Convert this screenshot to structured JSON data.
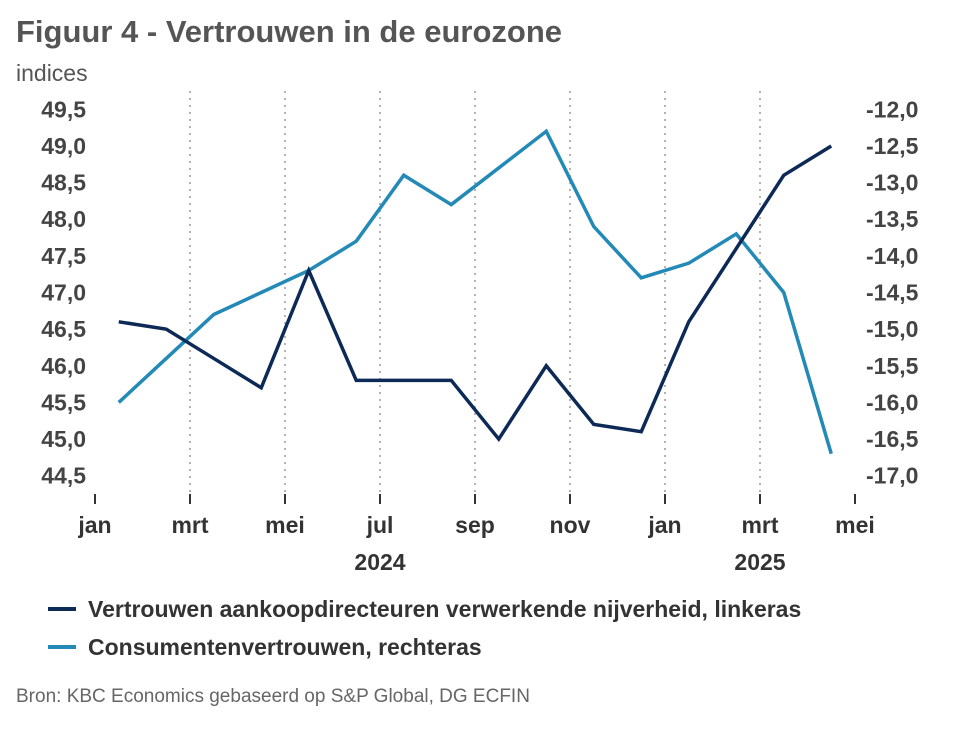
{
  "title": "Figuur 4 - Vertrouwen in de eurozone",
  "subtitle": "indices",
  "source": "Bron: KBC Economics gebaseerd op S&P Global, DG ECFIN",
  "colors": {
    "pmi": "#0d2a57",
    "consumer": "#2389b6",
    "grid": "#9a9a9a",
    "axis_text": "#444444"
  },
  "chart_data": {
    "type": "line",
    "left_axis": {
      "range": [
        44.25,
        49.75
      ],
      "ticks": [
        44.5,
        45.0,
        45.5,
        46.0,
        46.5,
        47.0,
        47.5,
        48.0,
        48.5,
        49.0,
        49.5
      ],
      "tick_labels": [
        "44,5",
        "45,0",
        "45,5",
        "46,0",
        "46,5",
        "47,0",
        "47,5",
        "48,0",
        "48,5",
        "49,0",
        "49,5"
      ]
    },
    "right_axis": {
      "range": [
        -17.25,
        -11.75
      ],
      "ticks": [
        -17.0,
        -16.5,
        -16.0,
        -15.5,
        -15.0,
        -14.5,
        -14.0,
        -13.5,
        -13.0,
        -12.5,
        -12.0
      ],
      "tick_labels": [
        "-17,0",
        "-16,5",
        "-16,0",
        "-15,5",
        "-15,0",
        "-14,5",
        "-14,0",
        "-13,5",
        "-13,0",
        "-12,5",
        "-12,0"
      ]
    },
    "x_axis": {
      "month_labels": [
        "jan",
        "mrt",
        "mei",
        "jul",
        "sep",
        "nov",
        "jan",
        "mrt",
        "mei"
      ],
      "year_labels": [
        {
          "label": "2024",
          "month_index": 6
        },
        {
          "label": "2025",
          "month_index": 14
        }
      ],
      "grid": true
    },
    "series": [
      {
        "name": "Vertrouwen aankoopdirecteuren verwerkende nijverheid, linkeras",
        "axis": "left",
        "color": "#0d2a57",
        "x": [
          "2024-01",
          "2024-02",
          "2024-03",
          "2024-04",
          "2024-05",
          "2024-06",
          "2024-07",
          "2024-08",
          "2024-09",
          "2024-10",
          "2024-11",
          "2024-12",
          "2025-01",
          "2025-02",
          "2025-03",
          "2025-04"
        ],
        "values": [
          46.6,
          46.5,
          46.1,
          45.7,
          47.3,
          45.8,
          45.8,
          45.8,
          45.0,
          46.0,
          45.2,
          45.1,
          46.6,
          47.6,
          48.6,
          49.0
        ]
      },
      {
        "name": "Consumentenvertrouwen, rechteras",
        "axis": "right",
        "color": "#2389b6",
        "x": [
          "2024-01",
          "2024-02",
          "2024-03",
          "2024-04",
          "2024-05",
          "2024-06",
          "2024-07",
          "2024-08",
          "2024-09",
          "2024-10",
          "2024-11",
          "2024-12",
          "2025-01",
          "2025-02",
          "2025-03",
          "2025-04"
        ],
        "values": [
          -16.0,
          -15.4,
          -14.8,
          -14.5,
          -14.2,
          -13.8,
          -12.9,
          -13.3,
          -12.8,
          -12.3,
          -13.6,
          -14.3,
          -14.1,
          -13.7,
          -14.5,
          -16.7
        ]
      }
    ]
  }
}
